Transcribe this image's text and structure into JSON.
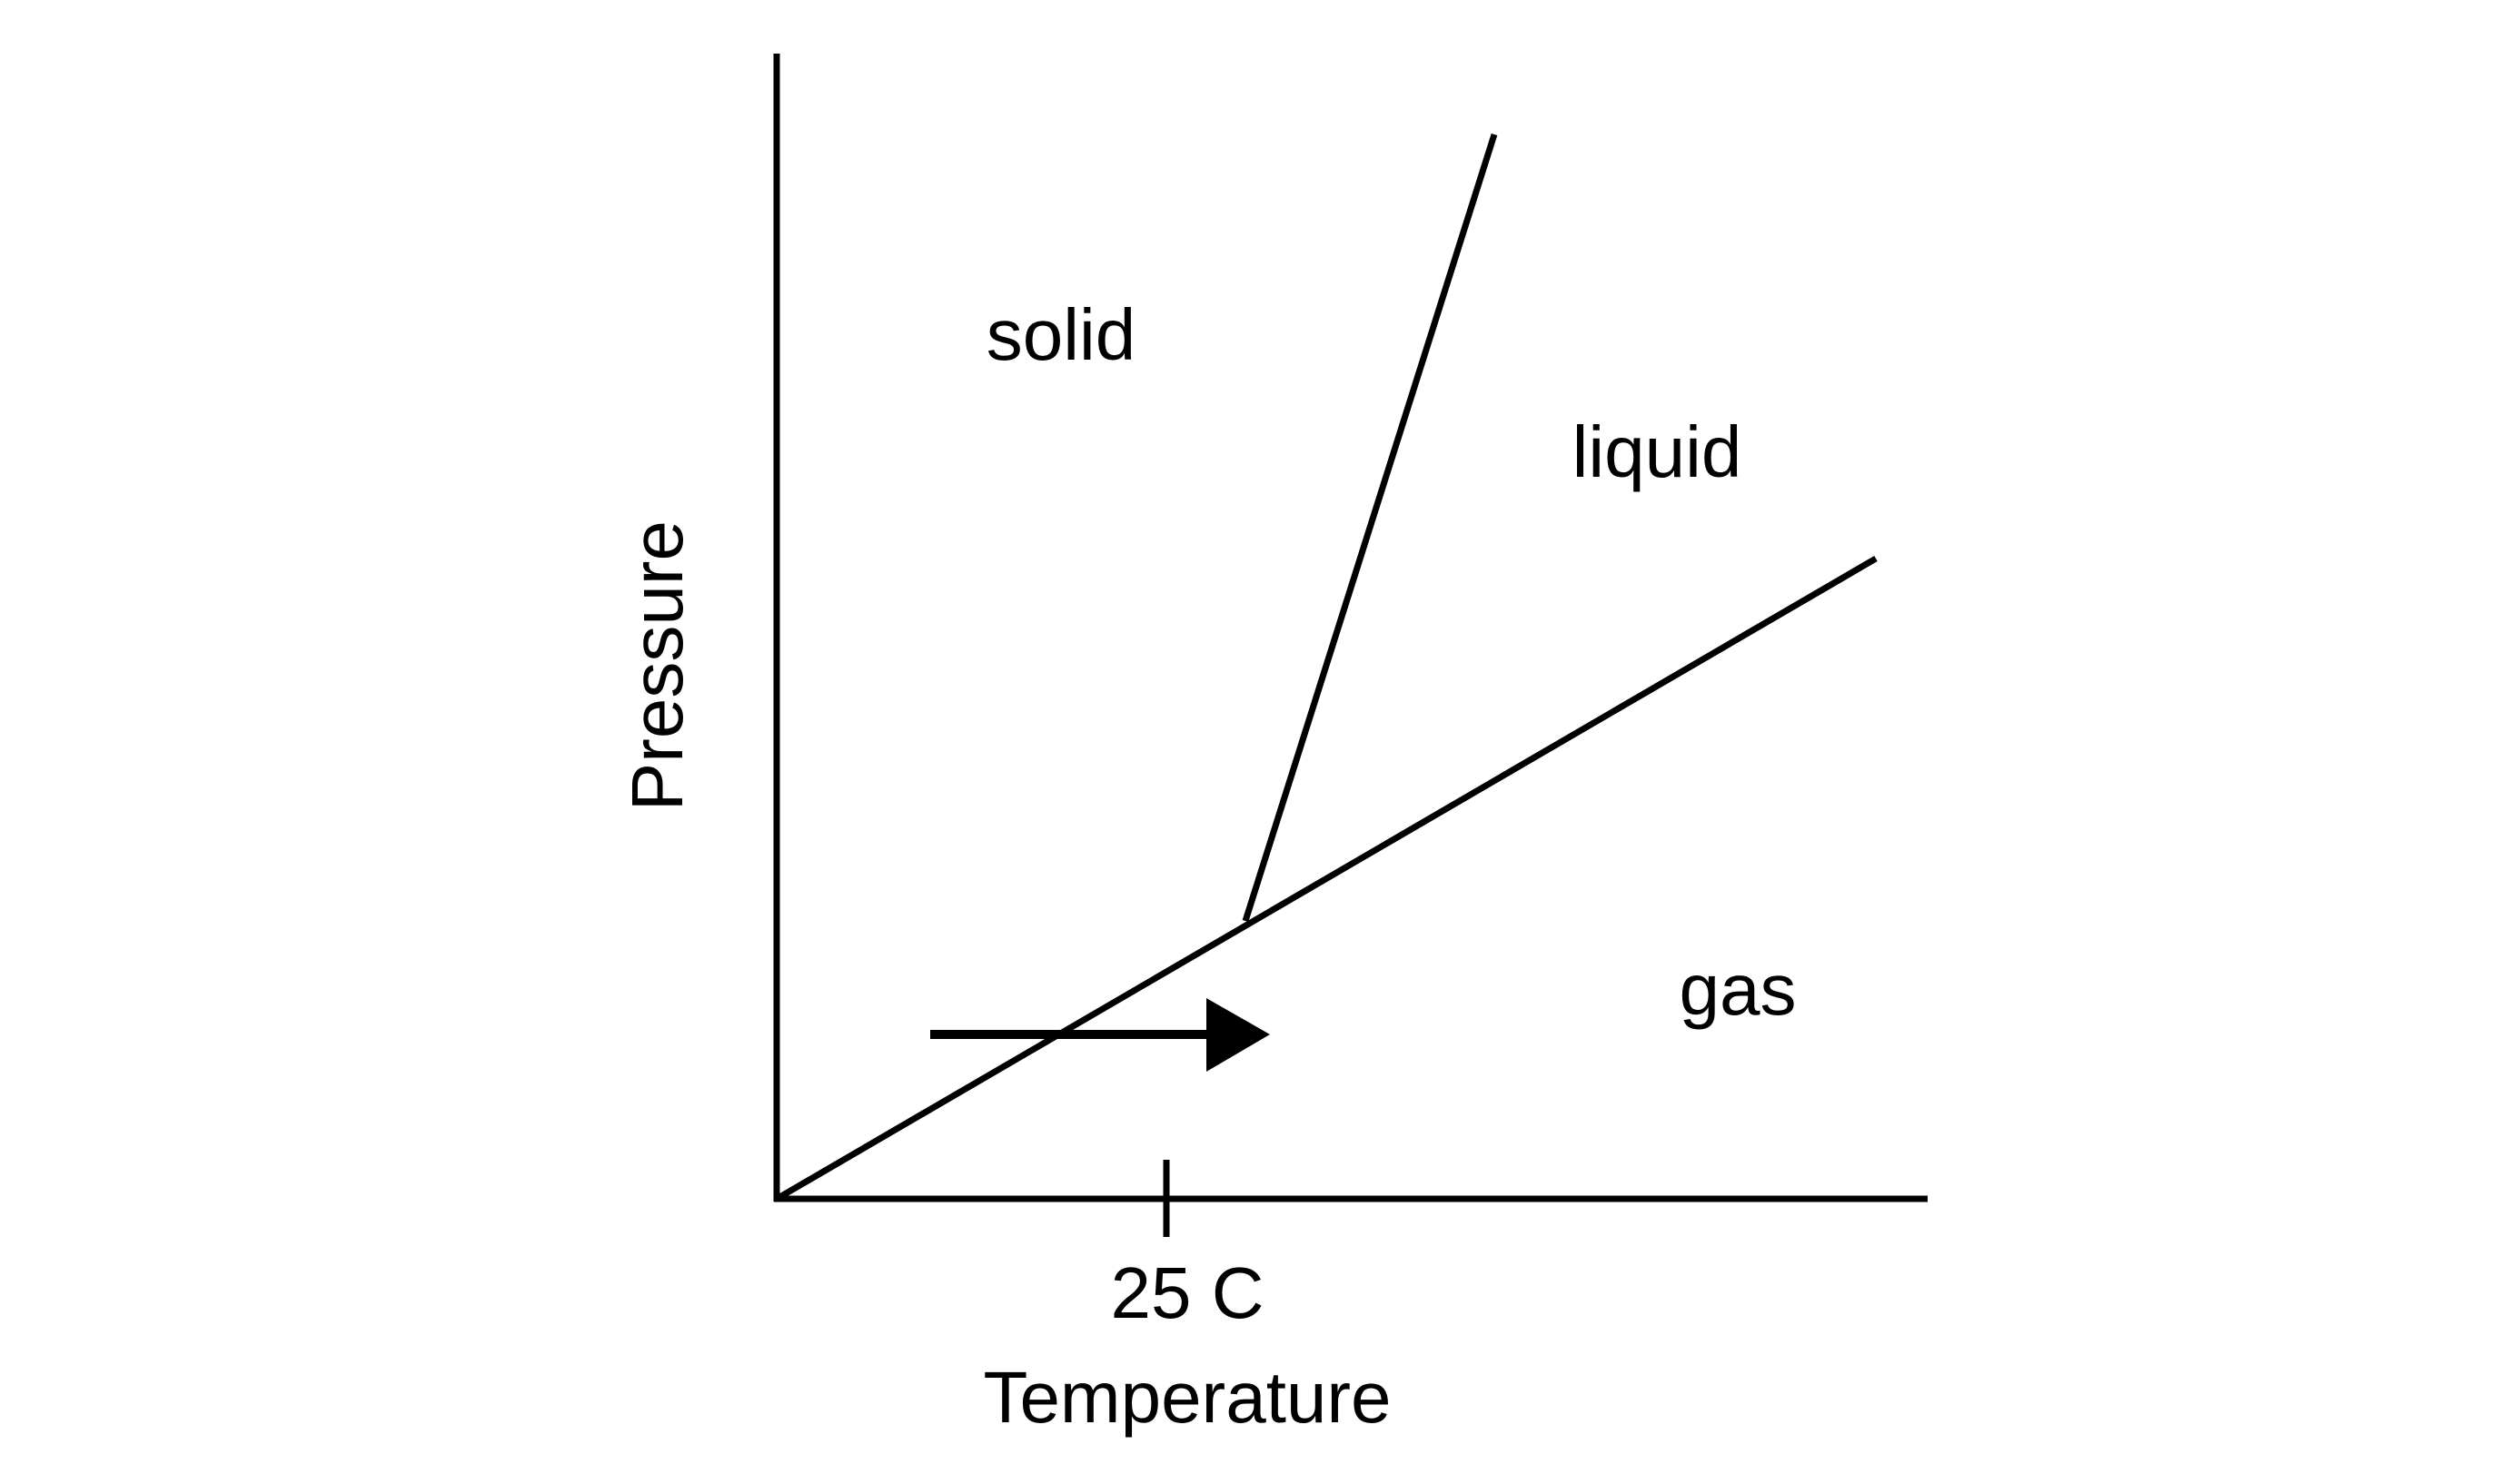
{
  "axes": {
    "x_label": "Temperature",
    "y_label": "Pressure",
    "x_tick": "25 C"
  },
  "regions": {
    "solid": "solid",
    "liquid": "liquid",
    "gas": "gas"
  }
}
